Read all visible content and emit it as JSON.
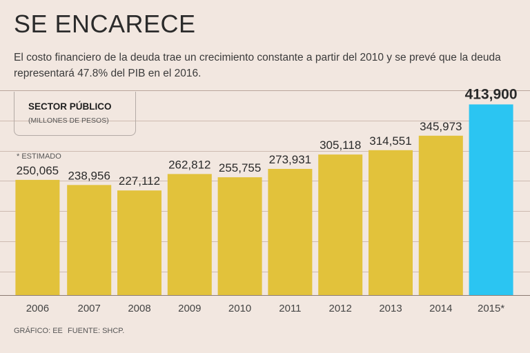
{
  "header": {
    "title": "SE ENCARECE",
    "subtitle": "El costo financiero de la deuda trae un crecimiento constante a partir del 2010 y se prevé que la deuda representará 47.8% del PIB en el 2016."
  },
  "legend": {
    "title": "SECTOR PÚBLICO",
    "units": "(MILLONES DE PESOS)"
  },
  "note": "* ESTIMADO",
  "footer": {
    "credit": "GRÁFICO: EE",
    "source": "FUENTE: SHCP."
  },
  "colors": {
    "bar": "#e2c23b",
    "highlight": "#2bc5f2",
    "grid": "#cdbab0",
    "axis": "#8a7a72",
    "text": "#2b2b2b"
  },
  "chart_data": {
    "type": "bar",
    "title": "SECTOR PÚBLICO",
    "ylabel": "(MILLONES DE PESOS)",
    "xlabel": "",
    "categories": [
      "2006",
      "2007",
      "2008",
      "2009",
      "2010",
      "2011",
      "2012",
      "2013",
      "2014",
      "2015*"
    ],
    "values": [
      250065,
      238956,
      227112,
      262812,
      255755,
      273931,
      305118,
      314551,
      345973,
      413900
    ],
    "value_labels": [
      "250,065",
      "238,956",
      "227,112",
      "262,812",
      "255,755",
      "273,931",
      "305,118",
      "314,551",
      "345,973",
      "413,900"
    ],
    "highlight_index": 9,
    "ylim": [
      0,
      440000
    ],
    "grid": true
  }
}
